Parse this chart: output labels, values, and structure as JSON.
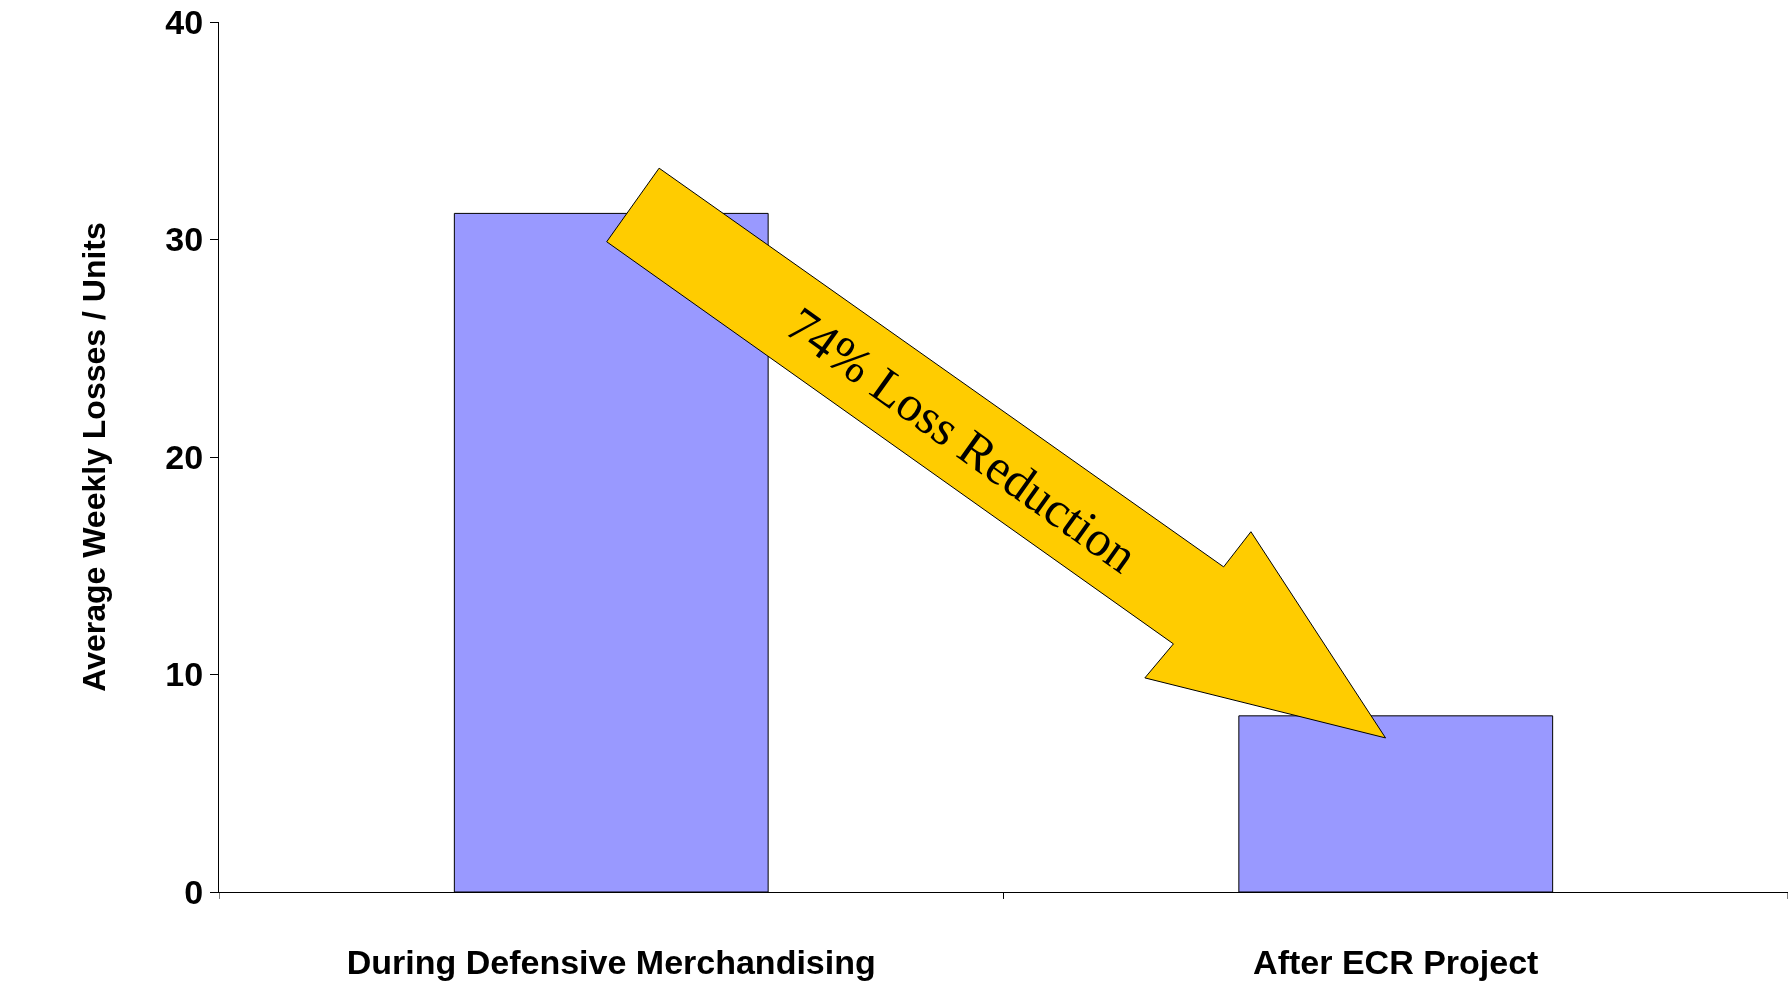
{
  "chart_data": {
    "type": "bar",
    "categories": [
      "During Defensive Merchandising",
      "After ECR Project"
    ],
    "values": [
      31.2,
      8.1
    ],
    "color": "#9999ff",
    "ylabel": "Average Weekly Losses / Units",
    "ylim": [
      0,
      40
    ],
    "yticks": [
      0,
      10,
      20,
      30,
      40
    ],
    "annotations": [
      "74% Loss Reduction"
    ],
    "legend": false
  }
}
